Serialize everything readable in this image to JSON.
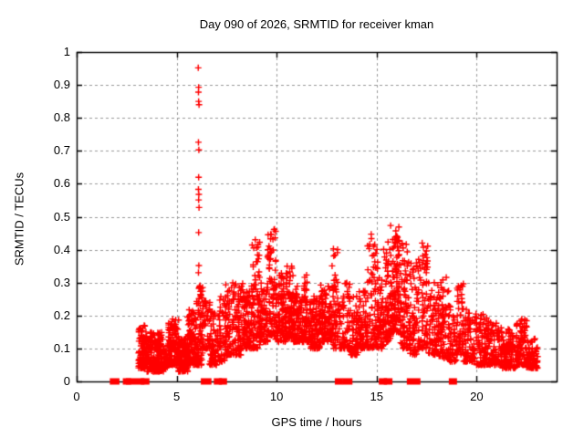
{
  "figure": {
    "background_color": "#ffffff",
    "frame_color": "#000000",
    "grid_color": "#999999",
    "marker_color": "#ff0000"
  },
  "chart_data": {
    "type": "scatter",
    "title": "Day 090 of 2026, SRMTID for receiver kman",
    "xlabel": "GPS time / hours",
    "ylabel": "SRMTID / TECUs",
    "xlim": [
      0,
      24
    ],
    "ylim": [
      0,
      1
    ],
    "x_tick_labels": [
      "0",
      "5",
      "10",
      "15",
      "20"
    ],
    "y_tick_labels": [
      "0",
      "0.1",
      "0.2",
      "0.3",
      "0.4",
      "0.5",
      "0.6",
      "0.7",
      "0.8",
      "0.9",
      "1"
    ],
    "grid": true,
    "legend": "none",
    "marker": "plus",
    "series_name": "SRMTID",
    "spike_points": [
      [
        6.08,
        0.952
      ],
      [
        6.1,
        0.893
      ],
      [
        6.09,
        0.878
      ],
      [
        6.1,
        0.85
      ],
      [
        6.12,
        0.84
      ],
      [
        6.09,
        0.726
      ],
      [
        6.11,
        0.703
      ],
      [
        6.1,
        0.62
      ],
      [
        6.09,
        0.583
      ],
      [
        6.11,
        0.568
      ],
      [
        6.1,
        0.551
      ],
      [
        6.12,
        0.528
      ],
      [
        6.1,
        0.452
      ],
      [
        6.11,
        0.352
      ],
      [
        6.09,
        0.33
      ]
    ],
    "zero_value_segments": [
      [
        1.75,
        2.05
      ],
      [
        2.4,
        2.5
      ],
      [
        2.55,
        3.3
      ],
      [
        3.3,
        3.55
      ],
      [
        6.3,
        6.65
      ],
      [
        6.95,
        7.1
      ],
      [
        7.2,
        7.4
      ],
      [
        13.0,
        13.2
      ],
      [
        13.4,
        13.7
      ],
      [
        15.2,
        15.35
      ],
      [
        15.45,
        15.7
      ],
      [
        16.6,
        17.1
      ],
      [
        18.7,
        18.9
      ]
    ],
    "dense_bands": [
      {
        "t0": 3.1,
        "t1": 3.5,
        "ymin": 0.04,
        "ymax": 0.17,
        "n": 110
      },
      {
        "t0": 3.5,
        "t1": 4.35,
        "ymin": 0.03,
        "ymax": 0.15,
        "n": 210
      },
      {
        "t0": 4.35,
        "t1": 4.6,
        "ymin": 0.04,
        "ymax": 0.11,
        "n": 40
      },
      {
        "t0": 4.6,
        "t1": 5.1,
        "ymin": 0.05,
        "ymax": 0.19,
        "n": 120
      },
      {
        "t0": 5.1,
        "t1": 5.55,
        "ymin": 0.03,
        "ymax": 0.13,
        "n": 120
      },
      {
        "t0": 5.55,
        "t1": 6.0,
        "ymin": 0.05,
        "ymax": 0.22,
        "n": 120
      },
      {
        "t0": 6.0,
        "t1": 6.3,
        "ymin": 0.05,
        "ymax": 0.3,
        "n": 70
      },
      {
        "t0": 6.3,
        "t1": 6.65,
        "ymin": 0.1,
        "ymax": 0.25,
        "n": 45
      },
      {
        "t0": 6.65,
        "t1": 7.05,
        "ymin": 0.05,
        "ymax": 0.24,
        "n": 60
      },
      {
        "t0": 7.05,
        "t1": 7.45,
        "ymin": 0.06,
        "ymax": 0.26,
        "n": 60
      },
      {
        "t0": 7.45,
        "t1": 8.3,
        "ymin": 0.08,
        "ymax": 0.3,
        "n": 140
      },
      {
        "t0": 8.3,
        "t1": 8.75,
        "ymin": 0.1,
        "ymax": 0.28,
        "n": 90
      },
      {
        "t0": 8.75,
        "t1": 9.15,
        "ymin": 0.1,
        "ymax": 0.44,
        "n": 85
      },
      {
        "t0": 9.15,
        "t1": 9.55,
        "ymin": 0.12,
        "ymax": 0.3,
        "n": 75
      },
      {
        "t0": 9.55,
        "t1": 9.95,
        "ymin": 0.14,
        "ymax": 0.47,
        "n": 85
      },
      {
        "t0": 9.95,
        "t1": 10.45,
        "ymin": 0.12,
        "ymax": 0.33,
        "n": 95
      },
      {
        "t0": 10.45,
        "t1": 10.85,
        "ymin": 0.13,
        "ymax": 0.35,
        "n": 85
      },
      {
        "t0": 10.85,
        "t1": 11.3,
        "ymin": 0.12,
        "ymax": 0.3,
        "n": 85
      },
      {
        "t0": 11.3,
        "t1": 11.6,
        "ymin": 0.12,
        "ymax": 0.33,
        "n": 55
      },
      {
        "t0": 11.6,
        "t1": 12.2,
        "ymin": 0.1,
        "ymax": 0.27,
        "n": 110
      },
      {
        "t0": 12.2,
        "t1": 12.75,
        "ymin": 0.12,
        "ymax": 0.3,
        "n": 95
      },
      {
        "t0": 12.75,
        "t1": 13.05,
        "ymin": 0.1,
        "ymax": 0.41,
        "n": 55
      },
      {
        "t0": 13.05,
        "t1": 13.65,
        "ymin": 0.1,
        "ymax": 0.3,
        "n": 75
      },
      {
        "t0": 13.65,
        "t1": 14.1,
        "ymin": 0.08,
        "ymax": 0.26,
        "n": 75
      },
      {
        "t0": 14.1,
        "t1": 14.55,
        "ymin": 0.1,
        "ymax": 0.28,
        "n": 75
      },
      {
        "t0": 14.55,
        "t1": 15.05,
        "ymin": 0.1,
        "ymax": 0.46,
        "n": 80
      },
      {
        "t0": 15.05,
        "t1": 15.35,
        "ymin": 0.1,
        "ymax": 0.32,
        "n": 55
      },
      {
        "t0": 15.35,
        "t1": 15.7,
        "ymin": 0.12,
        "ymax": 0.43,
        "n": 65
      },
      {
        "t0": 15.7,
        "t1": 16.2,
        "ymin": 0.15,
        "ymax": 0.49,
        "n": 120
      },
      {
        "t0": 16.2,
        "t1": 16.6,
        "ymin": 0.1,
        "ymax": 0.42,
        "n": 75
      },
      {
        "t0": 16.6,
        "t1": 17.1,
        "ymin": 0.08,
        "ymax": 0.36,
        "n": 75
      },
      {
        "t0": 17.1,
        "t1": 17.6,
        "ymin": 0.1,
        "ymax": 0.44,
        "n": 75
      },
      {
        "t0": 17.6,
        "t1": 18.1,
        "ymin": 0.08,
        "ymax": 0.3,
        "n": 75
      },
      {
        "t0": 18.1,
        "t1": 18.6,
        "ymin": 0.07,
        "ymax": 0.32,
        "n": 75
      },
      {
        "t0": 18.6,
        "t1": 19.0,
        "ymin": 0.06,
        "ymax": 0.25,
        "n": 55
      },
      {
        "t0": 19.0,
        "t1": 19.35,
        "ymin": 0.08,
        "ymax": 0.35,
        "n": 55
      },
      {
        "t0": 19.35,
        "t1": 20.0,
        "ymin": 0.06,
        "ymax": 0.22,
        "n": 90
      },
      {
        "t0": 20.0,
        "t1": 20.6,
        "ymin": 0.05,
        "ymax": 0.21,
        "n": 90
      },
      {
        "t0": 20.6,
        "t1": 21.3,
        "ymin": 0.05,
        "ymax": 0.18,
        "n": 100
      },
      {
        "t0": 21.3,
        "t1": 22.0,
        "ymin": 0.04,
        "ymax": 0.16,
        "n": 100
      },
      {
        "t0": 22.0,
        "t1": 22.5,
        "ymin": 0.05,
        "ymax": 0.19,
        "n": 80
      },
      {
        "t0": 22.5,
        "t1": 23.05,
        "ymin": 0.04,
        "ymax": 0.13,
        "n": 90
      }
    ]
  }
}
